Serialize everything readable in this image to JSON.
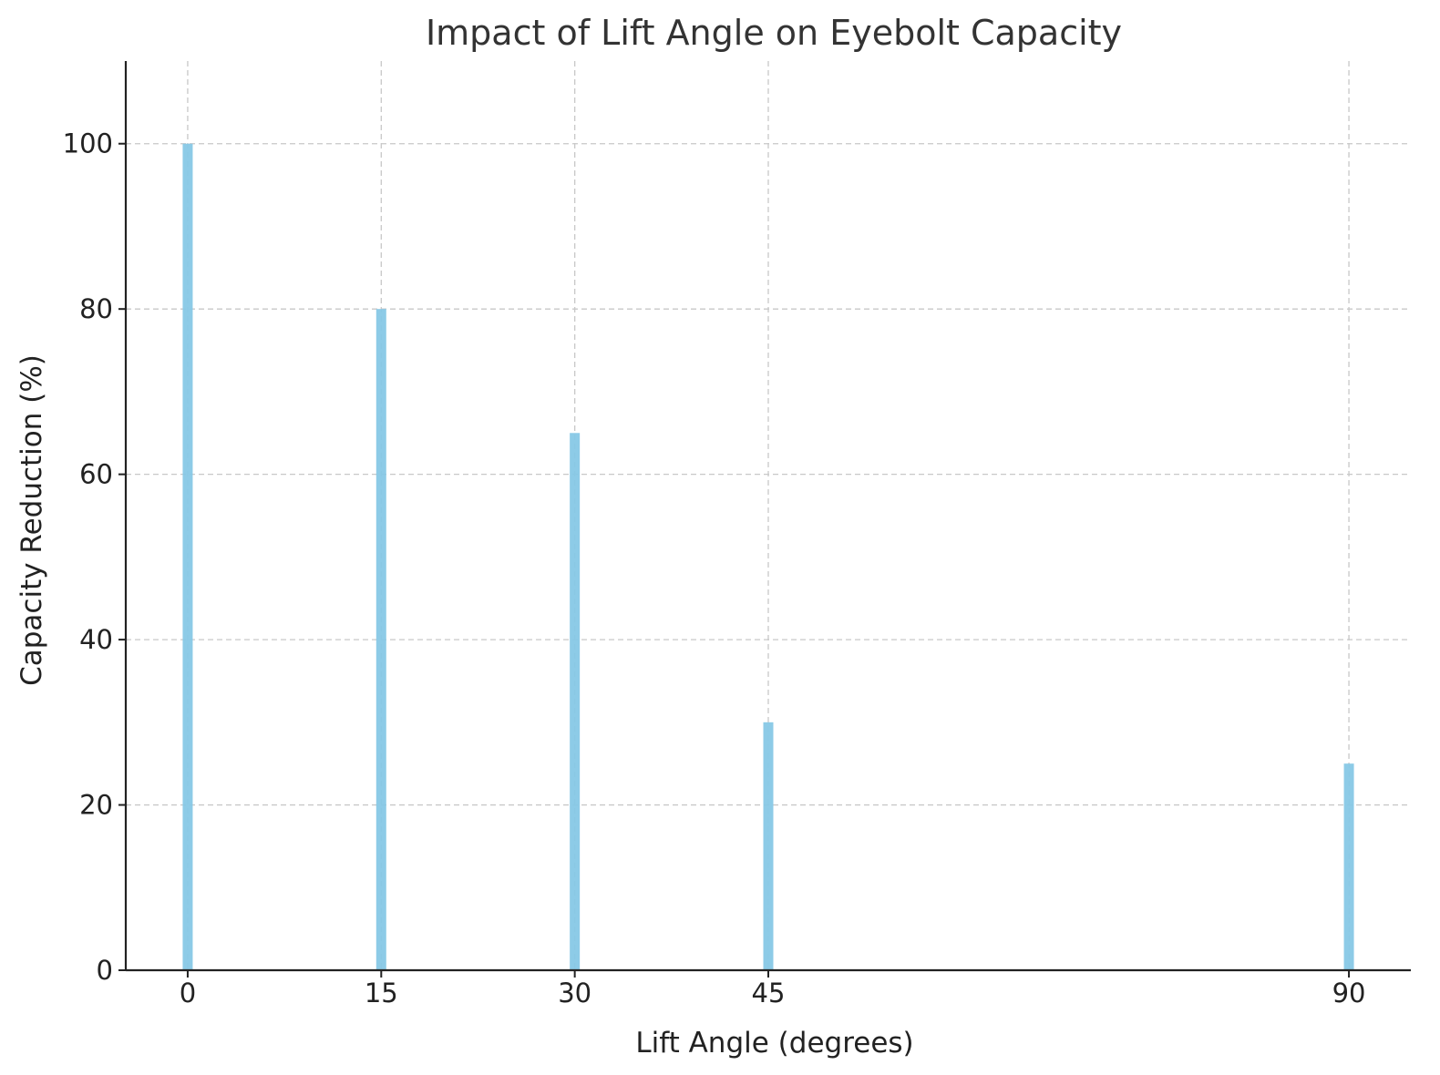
{
  "chart_data": {
    "type": "bar",
    "title": "Impact of Lift Angle on Eyebolt Capacity",
    "xlabel": "Lift Angle (degrees)",
    "ylabel": "Capacity Reduction (%)",
    "x": [
      0,
      15,
      30,
      45,
      90
    ],
    "x_tick_labels": [
      "0",
      "15",
      "30",
      "45",
      "90"
    ],
    "values": [
      100,
      80,
      65,
      30,
      25
    ],
    "y_ticks": [
      0,
      20,
      40,
      60,
      80,
      100
    ],
    "y_tick_labels": [
      "0",
      "20",
      "40",
      "60",
      "80",
      "100"
    ],
    "xlim": [
      -4.8,
      94.8
    ],
    "ylim": [
      0,
      110
    ],
    "grid": true,
    "bar_color": "#87c8e6",
    "legend": null
  }
}
